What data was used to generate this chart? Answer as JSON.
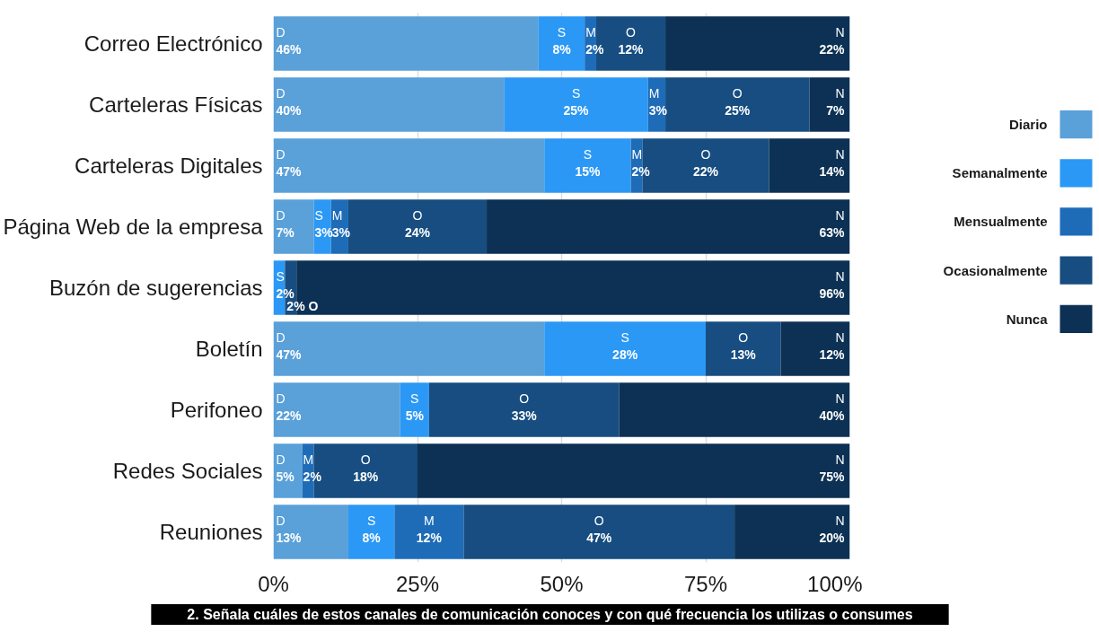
{
  "chart_data": {
    "type": "bar",
    "orientation": "horizontal",
    "stacked": true,
    "title": "2. Señala cuáles de estos canales de comunicación conoces y con qué frecuencia los utilizas o consumes",
    "categories": [
      "Correo Electrónico",
      "Carteleras Físicas",
      "Carteleras Digitales",
      "Página Web de la empresa",
      "Buzón de sugerencias",
      "Boletín",
      "Perifoneo",
      "Redes Sociales",
      "Reuniones"
    ],
    "series": [
      {
        "name": "Diario",
        "color": "#5aa0d9",
        "values": [
          46,
          40,
          47,
          7,
          null,
          47,
          22,
          5,
          13
        ],
        "value_labels": [
          "D\n46%",
          "D\n40%",
          "D\n47%",
          "D\n7%",
          null,
          "D\n47%",
          "D\n22%",
          "D\n5%",
          "D\n13%"
        ]
      },
      {
        "name": "Semanalmente",
        "color": "#2b98f5",
        "values": [
          8,
          25,
          15,
          3,
          2,
          28,
          5,
          null,
          8
        ],
        "value_labels": [
          "S\n8%",
          "S\n25%",
          "S\n15%",
          "S\n3%",
          "S\n2%",
          "S\n28%",
          "S\n5%",
          null,
          "S\n8%"
        ]
      },
      {
        "name": "Mensualmente",
        "color": "#1e6cb8",
        "values": [
          2,
          3,
          2,
          3,
          null,
          null,
          null,
          2,
          12
        ],
        "value_labels": [
          "M\n2%",
          "M\n3%",
          "M\n2%",
          "M\n3%",
          null,
          null,
          null,
          "M\n2%",
          "M\n12%"
        ]
      },
      {
        "name": "Ocasionalmente",
        "color": "#174d80",
        "values": [
          12,
          25,
          22,
          24,
          2,
          13,
          33,
          18,
          47
        ],
        "value_labels": [
          "O\n12%",
          "O\n25%",
          "O\n22%",
          "O\n24%",
          "2% O",
          "O\n13%",
          "O\n33%",
          "O\n18%",
          "O\n47%"
        ]
      },
      {
        "name": "Nunca",
        "color": "#0c3154",
        "values": [
          32,
          7,
          14,
          63,
          96,
          12,
          40,
          75,
          20
        ],
        "value_labels": [
          "N\n22%",
          "N\n7%",
          "N\n14%",
          "N\n63%",
          "N\n96%",
          "N\n12%",
          "N\n40%",
          "N\n75%",
          "N\n20%"
        ]
      }
    ],
    "xlim": [
      0,
      100
    ],
    "xticks": [
      {
        "value": 0,
        "label": "0%"
      },
      {
        "value": 25,
        "label": "25%"
      },
      {
        "value": 50,
        "label": "50%"
      },
      {
        "value": 75,
        "label": "75%"
      },
      {
        "value": 100,
        "label": "100%"
      }
    ],
    "grid": "x",
    "legend": "right"
  }
}
